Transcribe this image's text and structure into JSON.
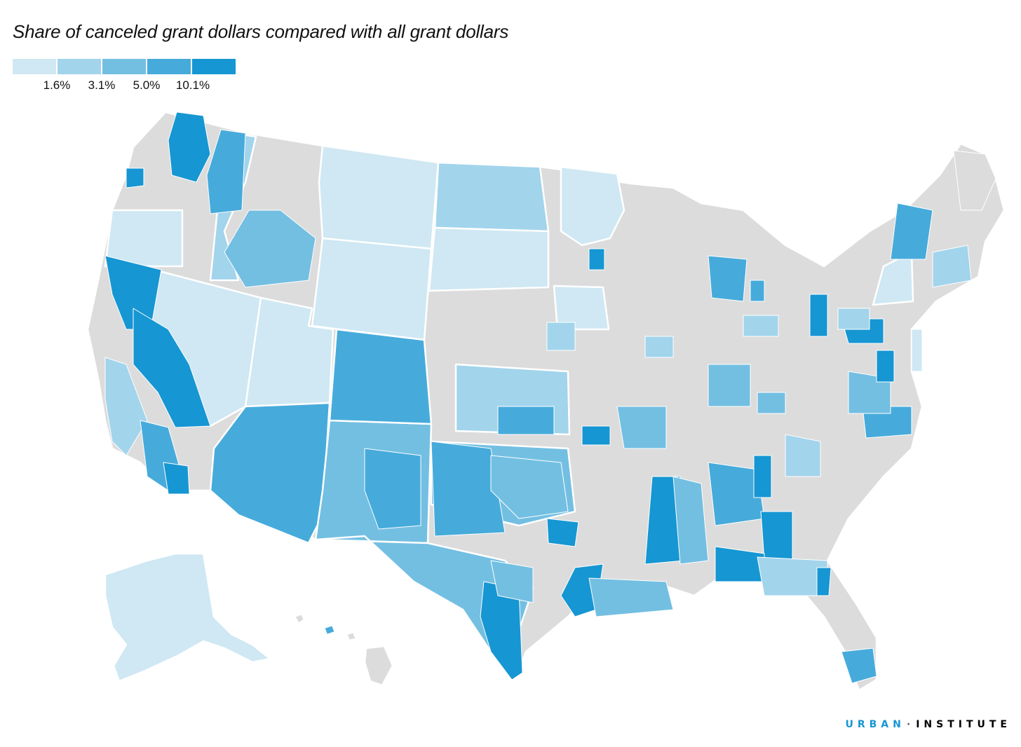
{
  "title": "Share of canceled grant dollars compared with all grant dollars",
  "legend": {
    "colors": [
      "#cfe8f3",
      "#a2d4ec",
      "#73bfe2",
      "#46abdb",
      "#1696d2"
    ],
    "thresholds": [
      "1.6%",
      "3.1%",
      "5.0%",
      "10.1%"
    ]
  },
  "map": {
    "no_data_color": "#dcdcdc",
    "border_color": "#ffffff"
  },
  "brand": {
    "part1": "URBAN",
    "separator": "·",
    "part2": "INSTITUTE"
  }
}
